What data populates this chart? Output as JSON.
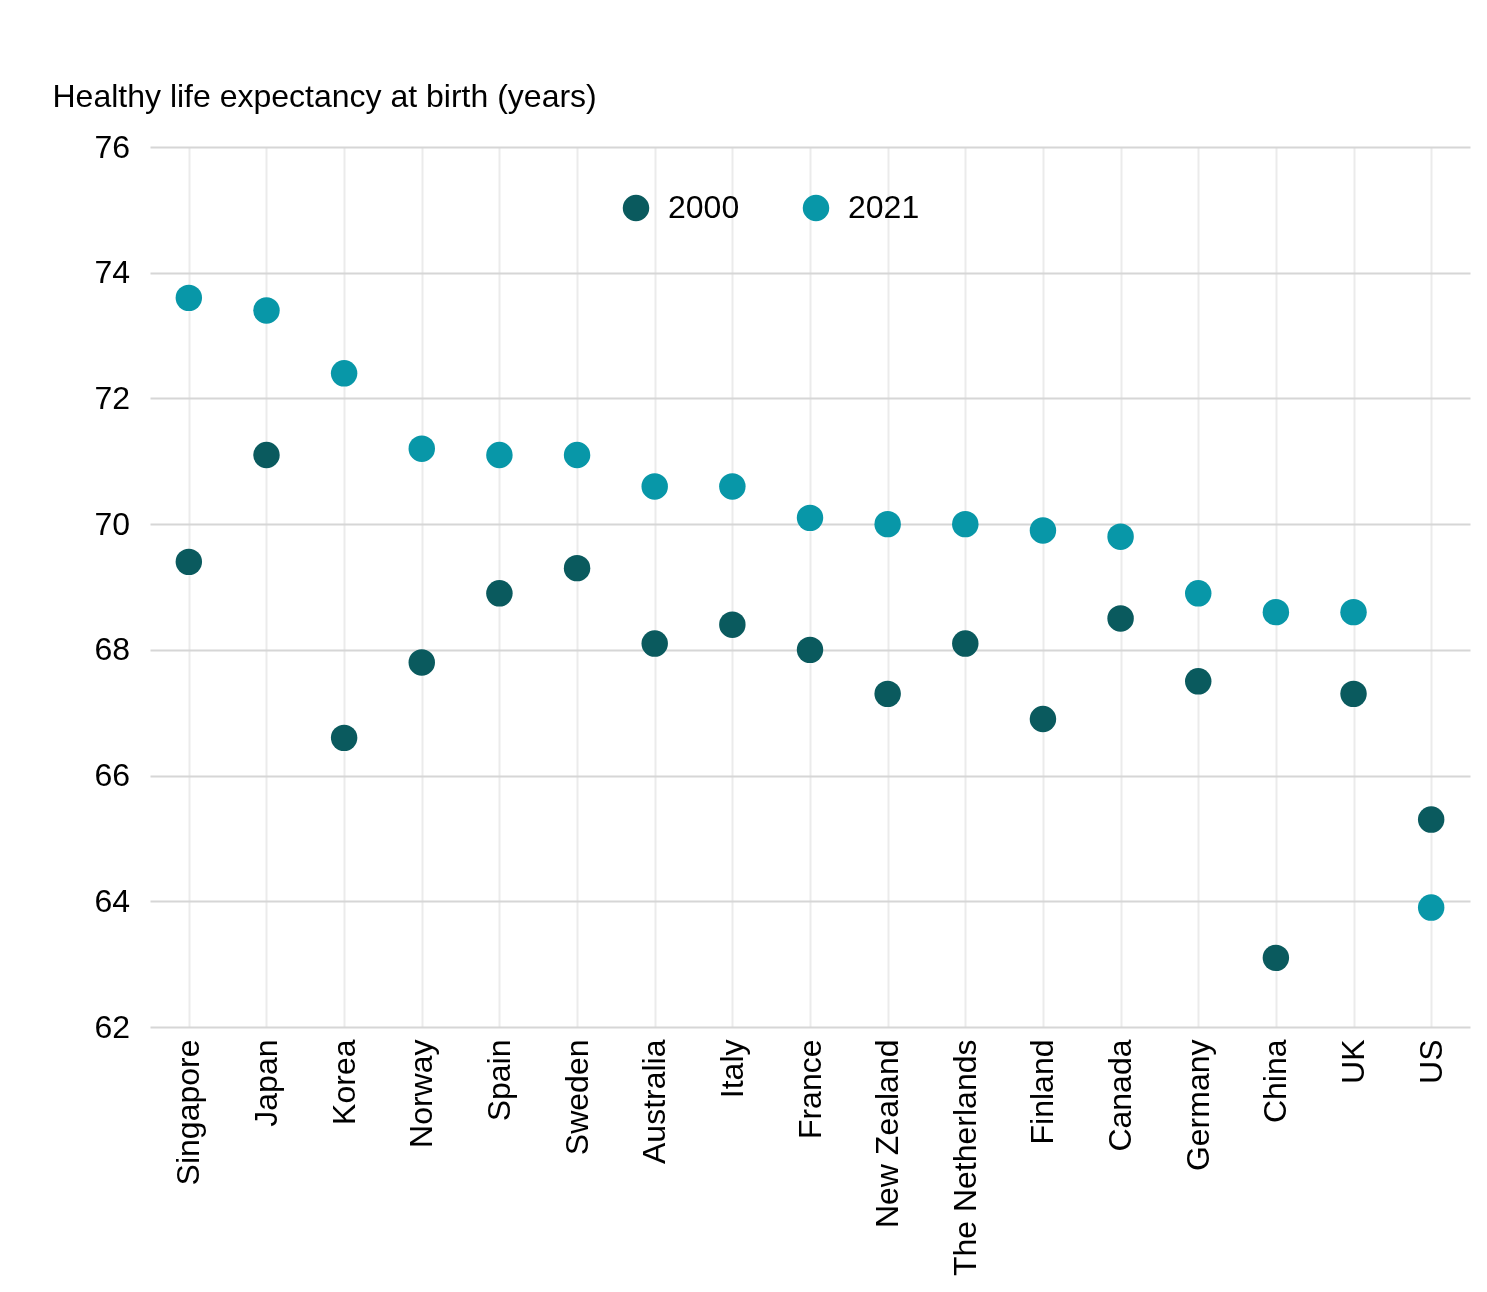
{
  "chart_data": {
    "type": "scatter",
    "ylabel": "Healthy life expectancy at birth (years)",
    "categories": [
      "Singapore",
      "Japan",
      "Korea",
      "Norway",
      "Spain",
      "Sweden",
      "Australia",
      "Italy",
      "France",
      "New Zealand",
      "The Netherlands",
      "Finland",
      "Canada",
      "Germany",
      "China",
      "UK",
      "US"
    ],
    "series": [
      {
        "name": "2000",
        "color": "#0a5a5e",
        "values": [
          69.4,
          71.1,
          66.6,
          67.8,
          68.9,
          69.3,
          68.1,
          68.4,
          68.0,
          67.3,
          68.1,
          66.9,
          68.5,
          67.5,
          63.1,
          67.3,
          65.3
        ]
      },
      {
        "name": "2021",
        "color": "#0897a8",
        "values": [
          73.6,
          73.4,
          72.4,
          71.2,
          71.1,
          71.1,
          70.6,
          70.6,
          70.1,
          70.0,
          70.0,
          69.9,
          69.8,
          68.9,
          68.6,
          68.6,
          63.9
        ]
      }
    ],
    "ylim": [
      62,
      76
    ],
    "yticks": [
      62,
      64,
      66,
      68,
      70,
      72,
      74,
      76
    ],
    "grid": true,
    "legend": "top",
    "marker": "circle"
  }
}
